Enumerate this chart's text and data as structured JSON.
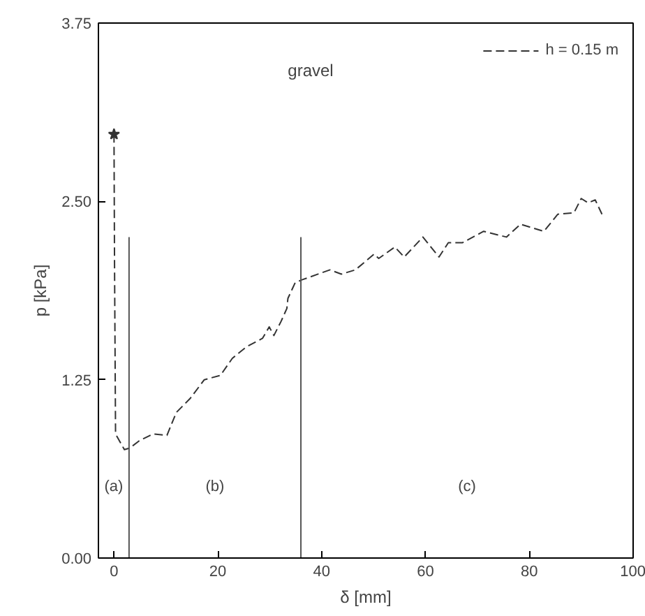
{
  "chart_data": {
    "type": "line",
    "xlabel": "δ [mm]",
    "ylabel": "p [kPa]",
    "xlim": [
      -3,
      100
    ],
    "ylim": [
      0,
      3.75
    ],
    "xticks": [
      0,
      20,
      40,
      60,
      80,
      100
    ],
    "yticks": [
      {
        "value": 0,
        "label": "0.00"
      },
      {
        "value": 1.25,
        "label": "1.25"
      },
      {
        "value": 2.5,
        "label": "2.50"
      },
      {
        "value": 3.75,
        "label": "3.75"
      }
    ],
    "grid": false,
    "legend": "top right",
    "line_style": "dashed",
    "series": [
      {
        "name": "h = 0.15 m",
        "color": "#333333",
        "x": [
          0,
          0.1,
          0.3,
          2.0,
          3.0,
          4.8,
          7.5,
          10.2,
          12.0,
          14.7,
          17.4,
          20.5,
          22.8,
          25.5,
          28.6,
          29.9,
          30.8,
          32.2,
          33.3,
          33.5,
          34.9,
          36.2,
          41.6,
          43.8,
          46.5,
          50.1,
          51.0,
          54.1,
          55.9,
          59.5,
          62.6,
          64.4,
          67.1,
          71.2,
          75.6,
          78.3,
          82.8,
          85.5,
          88.6,
          90.0,
          91.3,
          92.7,
          94.0
        ],
        "values": [
          2.97,
          2.08,
          0.87,
          0.76,
          0.77,
          0.82,
          0.87,
          0.86,
          1.02,
          1.12,
          1.25,
          1.28,
          1.4,
          1.48,
          1.54,
          1.62,
          1.56,
          1.66,
          1.75,
          1.82,
          1.93,
          1.95,
          2.02,
          1.99,
          2.02,
          2.13,
          2.1,
          2.18,
          2.11,
          2.25,
          2.11,
          2.21,
          2.21,
          2.29,
          2.25,
          2.34,
          2.29,
          2.41,
          2.42,
          2.52,
          2.49,
          2.51,
          2.41
        ]
      },
      {
        "type": "scatter",
        "marker": "star",
        "color": "#333333",
        "x": [
          0
        ],
        "values": [
          2.97
        ]
      },
      {
        "type": "line",
        "line_style": "solid",
        "color": "#555555",
        "x": [
          2.9,
          2.9
        ],
        "values": [
          0,
          2.25
        ]
      },
      {
        "type": "line",
        "line_style": "solid",
        "color": "#555555",
        "x": [
          36,
          36
        ],
        "values": [
          0,
          2.25
        ]
      }
    ],
    "annotations": [
      "gravel",
      "(a)",
      "(b)",
      "(c)"
    ]
  }
}
